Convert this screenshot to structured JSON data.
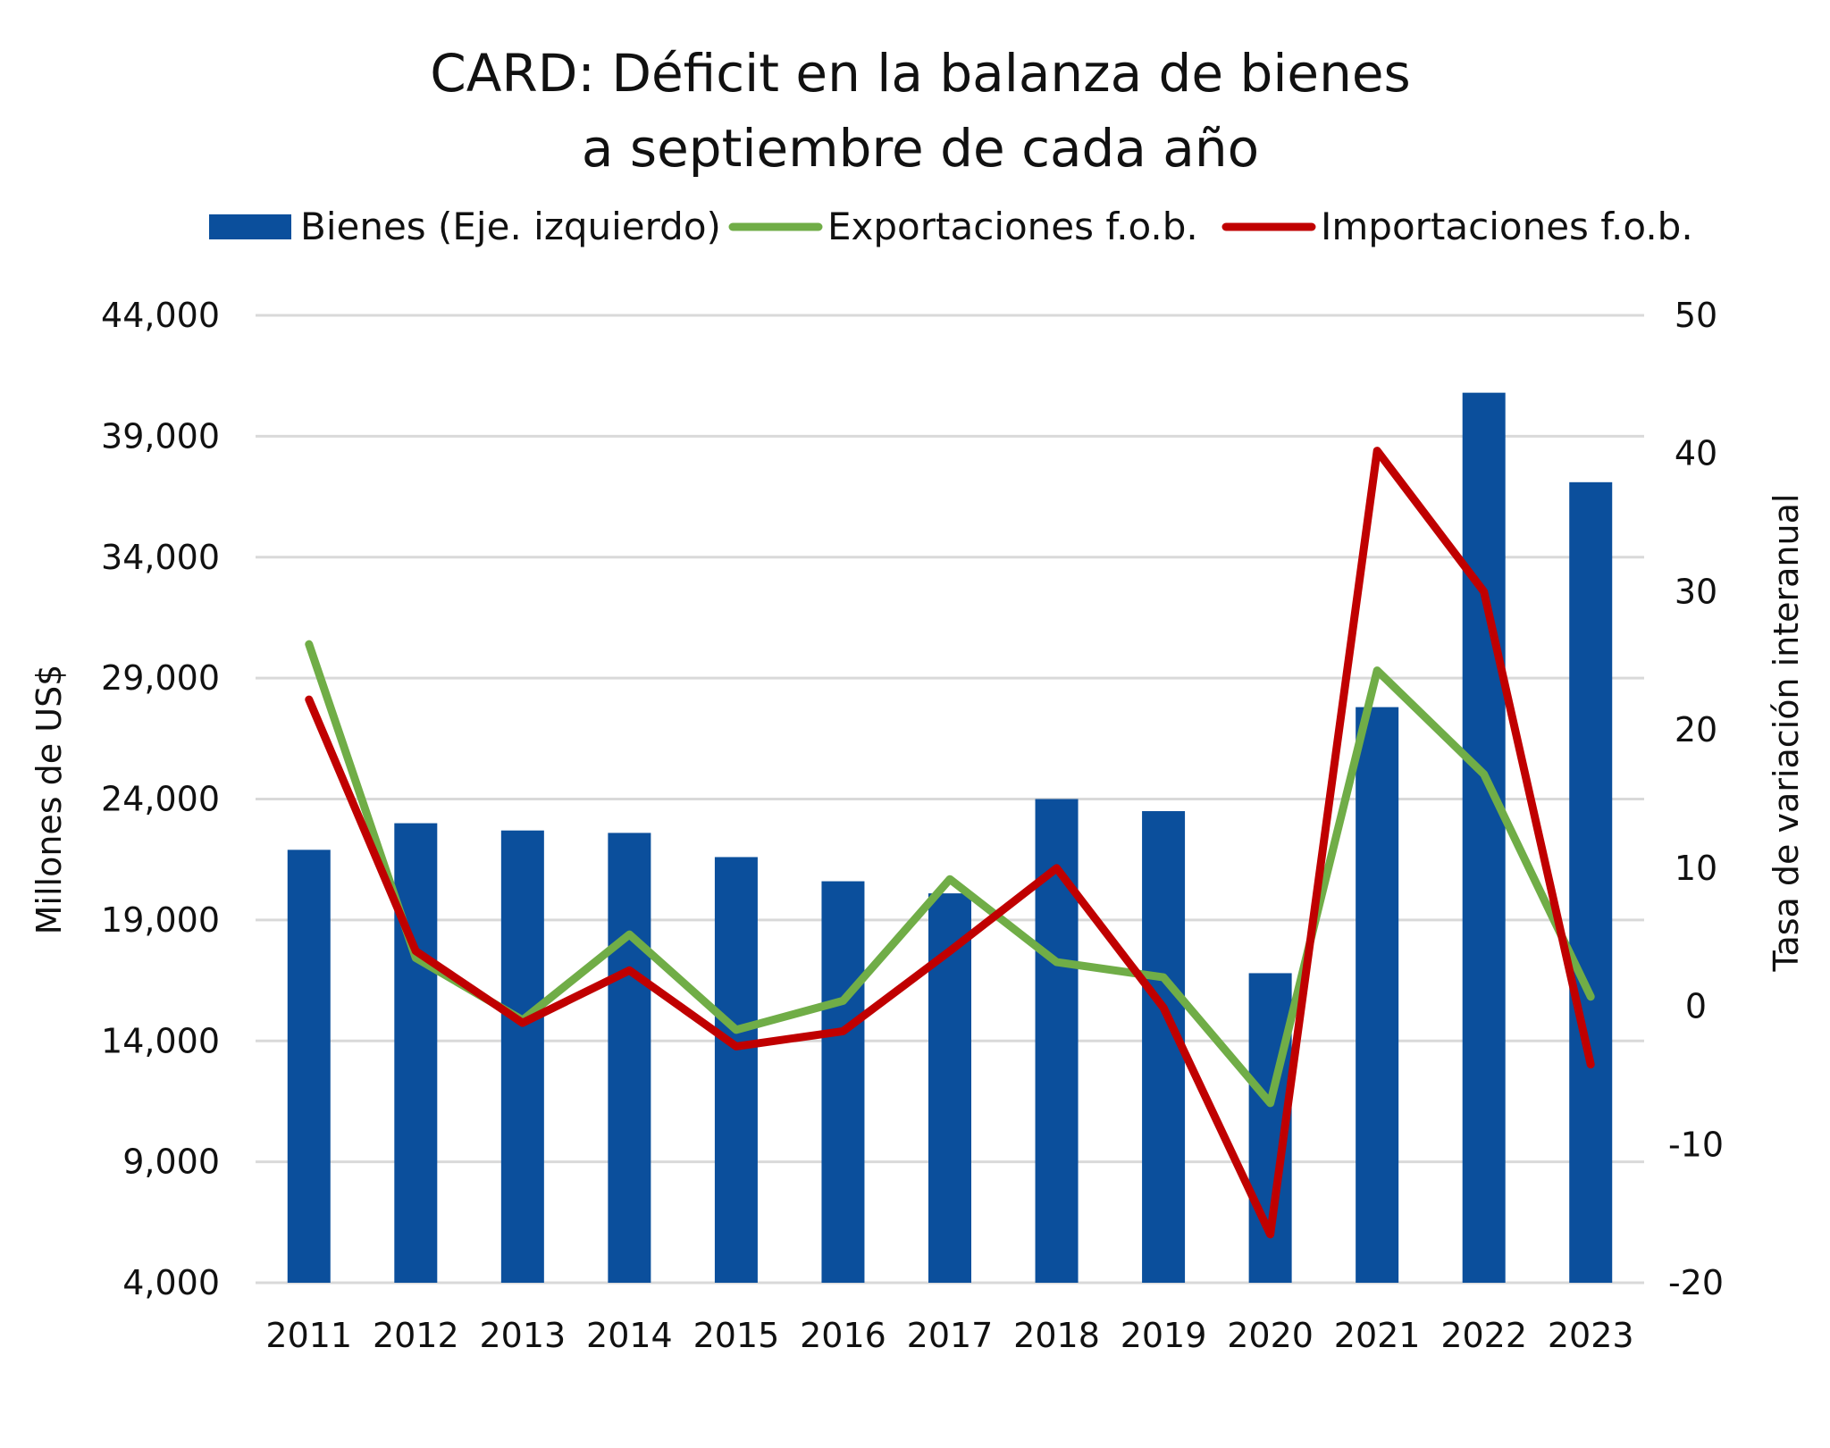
{
  "chart_data": {
    "type": "bar",
    "title_lines": [
      "CARD: Déficit en la balanza de bienes",
      "a septiembre de cada año"
    ],
    "ylabel": "Millones de US$",
    "y2label": "Tasa de variación interanual",
    "categories": [
      "2011",
      "2012",
      "2013",
      "2014",
      "2015",
      "2016",
      "2017",
      "2018",
      "2019",
      "2020",
      "2021",
      "2022",
      "2023"
    ],
    "ylim": [
      4000,
      44000
    ],
    "yticks": [
      4000,
      9000,
      14000,
      19000,
      24000,
      29000,
      34000,
      39000,
      44000
    ],
    "ytick_labels": [
      "4,000",
      "9,000",
      "14,000",
      "19,000",
      "24,000",
      "29,000",
      "34,000",
      "39,000",
      "44,000"
    ],
    "y2lim": [
      -20,
      50
    ],
    "y2ticks": [
      -20,
      -10,
      0,
      10,
      20,
      30,
      40,
      50
    ],
    "y2tick_labels": [
      "-20",
      "-10",
      "0",
      "10",
      "20",
      "30",
      "40",
      "50"
    ],
    "grid": true,
    "legend_position": "top",
    "series": [
      {
        "name": "Bienes (Eje. izquierdo)",
        "kind": "bar",
        "axis": "left",
        "color": "#0b4f9c",
        "values": [
          21900,
          23000,
          22700,
          22600,
          21600,
          20600,
          20100,
          24000,
          23500,
          16800,
          27800,
          40800,
          37100
        ]
      },
      {
        "name": "Exportaciones f.o.b.",
        "kind": "line",
        "axis": "right",
        "color": "#70ad47",
        "values": [
          26.2,
          3.5,
          -1.0,
          5.2,
          -1.7,
          0.4,
          9.2,
          3.2,
          2.1,
          -7.0,
          24.3,
          16.8,
          0.7
        ]
      },
      {
        "name": "Importaciones f.o.b.",
        "kind": "line",
        "axis": "right",
        "color": "#c00000",
        "values": [
          22.2,
          4.0,
          -1.2,
          2.6,
          -2.9,
          -1.8,
          4.0,
          10.0,
          -0.1,
          -16.5,
          40.2,
          30.0,
          -4.2
        ]
      }
    ]
  }
}
